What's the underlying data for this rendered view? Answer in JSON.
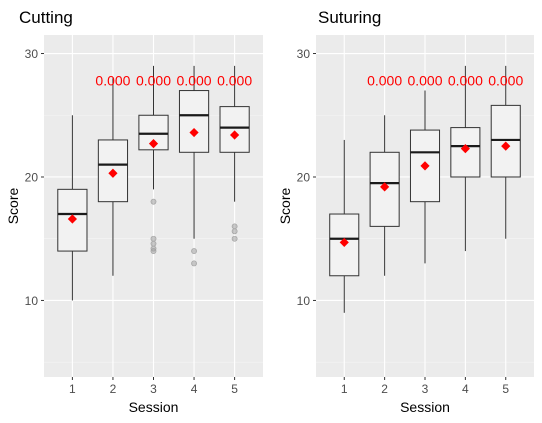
{
  "chart_data": [
    {
      "type": "box",
      "title": "Cutting",
      "xlabel": "Session",
      "ylabel": "Score",
      "ylim": [
        3.8,
        31.5
      ],
      "yticks": [
        10,
        20,
        30
      ],
      "grid": true,
      "categories": [
        "1",
        "2",
        "3",
        "4",
        "5"
      ],
      "boxes": [
        {
          "session": "1",
          "whisker_low": 10,
          "q1": 14,
          "median": 17,
          "q3": 19,
          "whisker_high": 25,
          "mean": 16.6,
          "outliers": []
        },
        {
          "session": "2",
          "whisker_low": 12,
          "q1": 18,
          "median": 21,
          "q3": 23,
          "whisker_high": 28,
          "mean": 20.3,
          "outliers": []
        },
        {
          "session": "3",
          "whisker_low": 19,
          "q1": 22.2,
          "median": 23.5,
          "q3": 25,
          "whisker_high": 29,
          "mean": 22.7,
          "outliers": [
            18,
            15,
            14.6,
            14.2,
            14
          ]
        },
        {
          "session": "4",
          "whisker_low": 15,
          "q1": 22,
          "median": 25,
          "q3": 27,
          "whisker_high": 29,
          "mean": 23.6,
          "outliers": [
            14,
            13
          ]
        },
        {
          "session": "5",
          "whisker_low": 18,
          "q1": 22,
          "median": 24,
          "q3": 25.7,
          "whisker_high": 29,
          "mean": 23.4,
          "outliers": [
            16,
            15.6,
            15
          ]
        }
      ],
      "annotations": [
        {
          "session": "2",
          "text": "0.000",
          "y": 27.8
        },
        {
          "session": "3",
          "text": "0.000",
          "y": 27.8
        },
        {
          "session": "4",
          "text": "0.000",
          "y": 27.8
        },
        {
          "session": "5",
          "text": "0.000",
          "y": 27.8
        }
      ]
    },
    {
      "type": "box",
      "title": "Suturing",
      "xlabel": "Session",
      "ylabel": "Score",
      "ylim": [
        3.8,
        31.5
      ],
      "yticks": [
        10,
        20,
        30
      ],
      "grid": true,
      "categories": [
        "1",
        "2",
        "3",
        "4",
        "5"
      ],
      "boxes": [
        {
          "session": "1",
          "whisker_low": 9,
          "q1": 12,
          "median": 15,
          "q3": 17,
          "whisker_high": 23,
          "mean": 14.7,
          "outliers": []
        },
        {
          "session": "2",
          "whisker_low": 12,
          "q1": 16,
          "median": 19.5,
          "q3": 22,
          "whisker_high": 25,
          "mean": 19.2,
          "outliers": []
        },
        {
          "session": "3",
          "whisker_low": 13,
          "q1": 18,
          "median": 22,
          "q3": 23.8,
          "whisker_high": 27,
          "mean": 20.9,
          "outliers": []
        },
        {
          "session": "4",
          "whisker_low": 14,
          "q1": 20,
          "median": 22.5,
          "q3": 24,
          "whisker_high": 29,
          "mean": 22.3,
          "outliers": []
        },
        {
          "session": "5",
          "whisker_low": 15,
          "q1": 20,
          "median": 23,
          "q3": 25.8,
          "whisker_high": 29,
          "mean": 22.5,
          "outliers": []
        }
      ],
      "annotations": [
        {
          "session": "2",
          "text": "0.000",
          "y": 27.8
        },
        {
          "session": "3",
          "text": "0.000",
          "y": 27.8
        },
        {
          "session": "4",
          "text": "0.000",
          "y": 27.8
        },
        {
          "session": "5",
          "text": "0.000",
          "y": 27.8
        }
      ]
    }
  ],
  "colors": {
    "panel_bg": "#ebebeb",
    "grid_major": "#ffffff",
    "grid_minor": "#f5f5f5",
    "box_fill": "#f2f2f2",
    "box_stroke": "#333333",
    "median": "#1a1a1a",
    "mean_marker": "#ff0000",
    "annotation": "#ff0000",
    "outlier": "#9e9e9e",
    "tick_text": "#4d4d4d",
    "title_text": "#000000"
  }
}
